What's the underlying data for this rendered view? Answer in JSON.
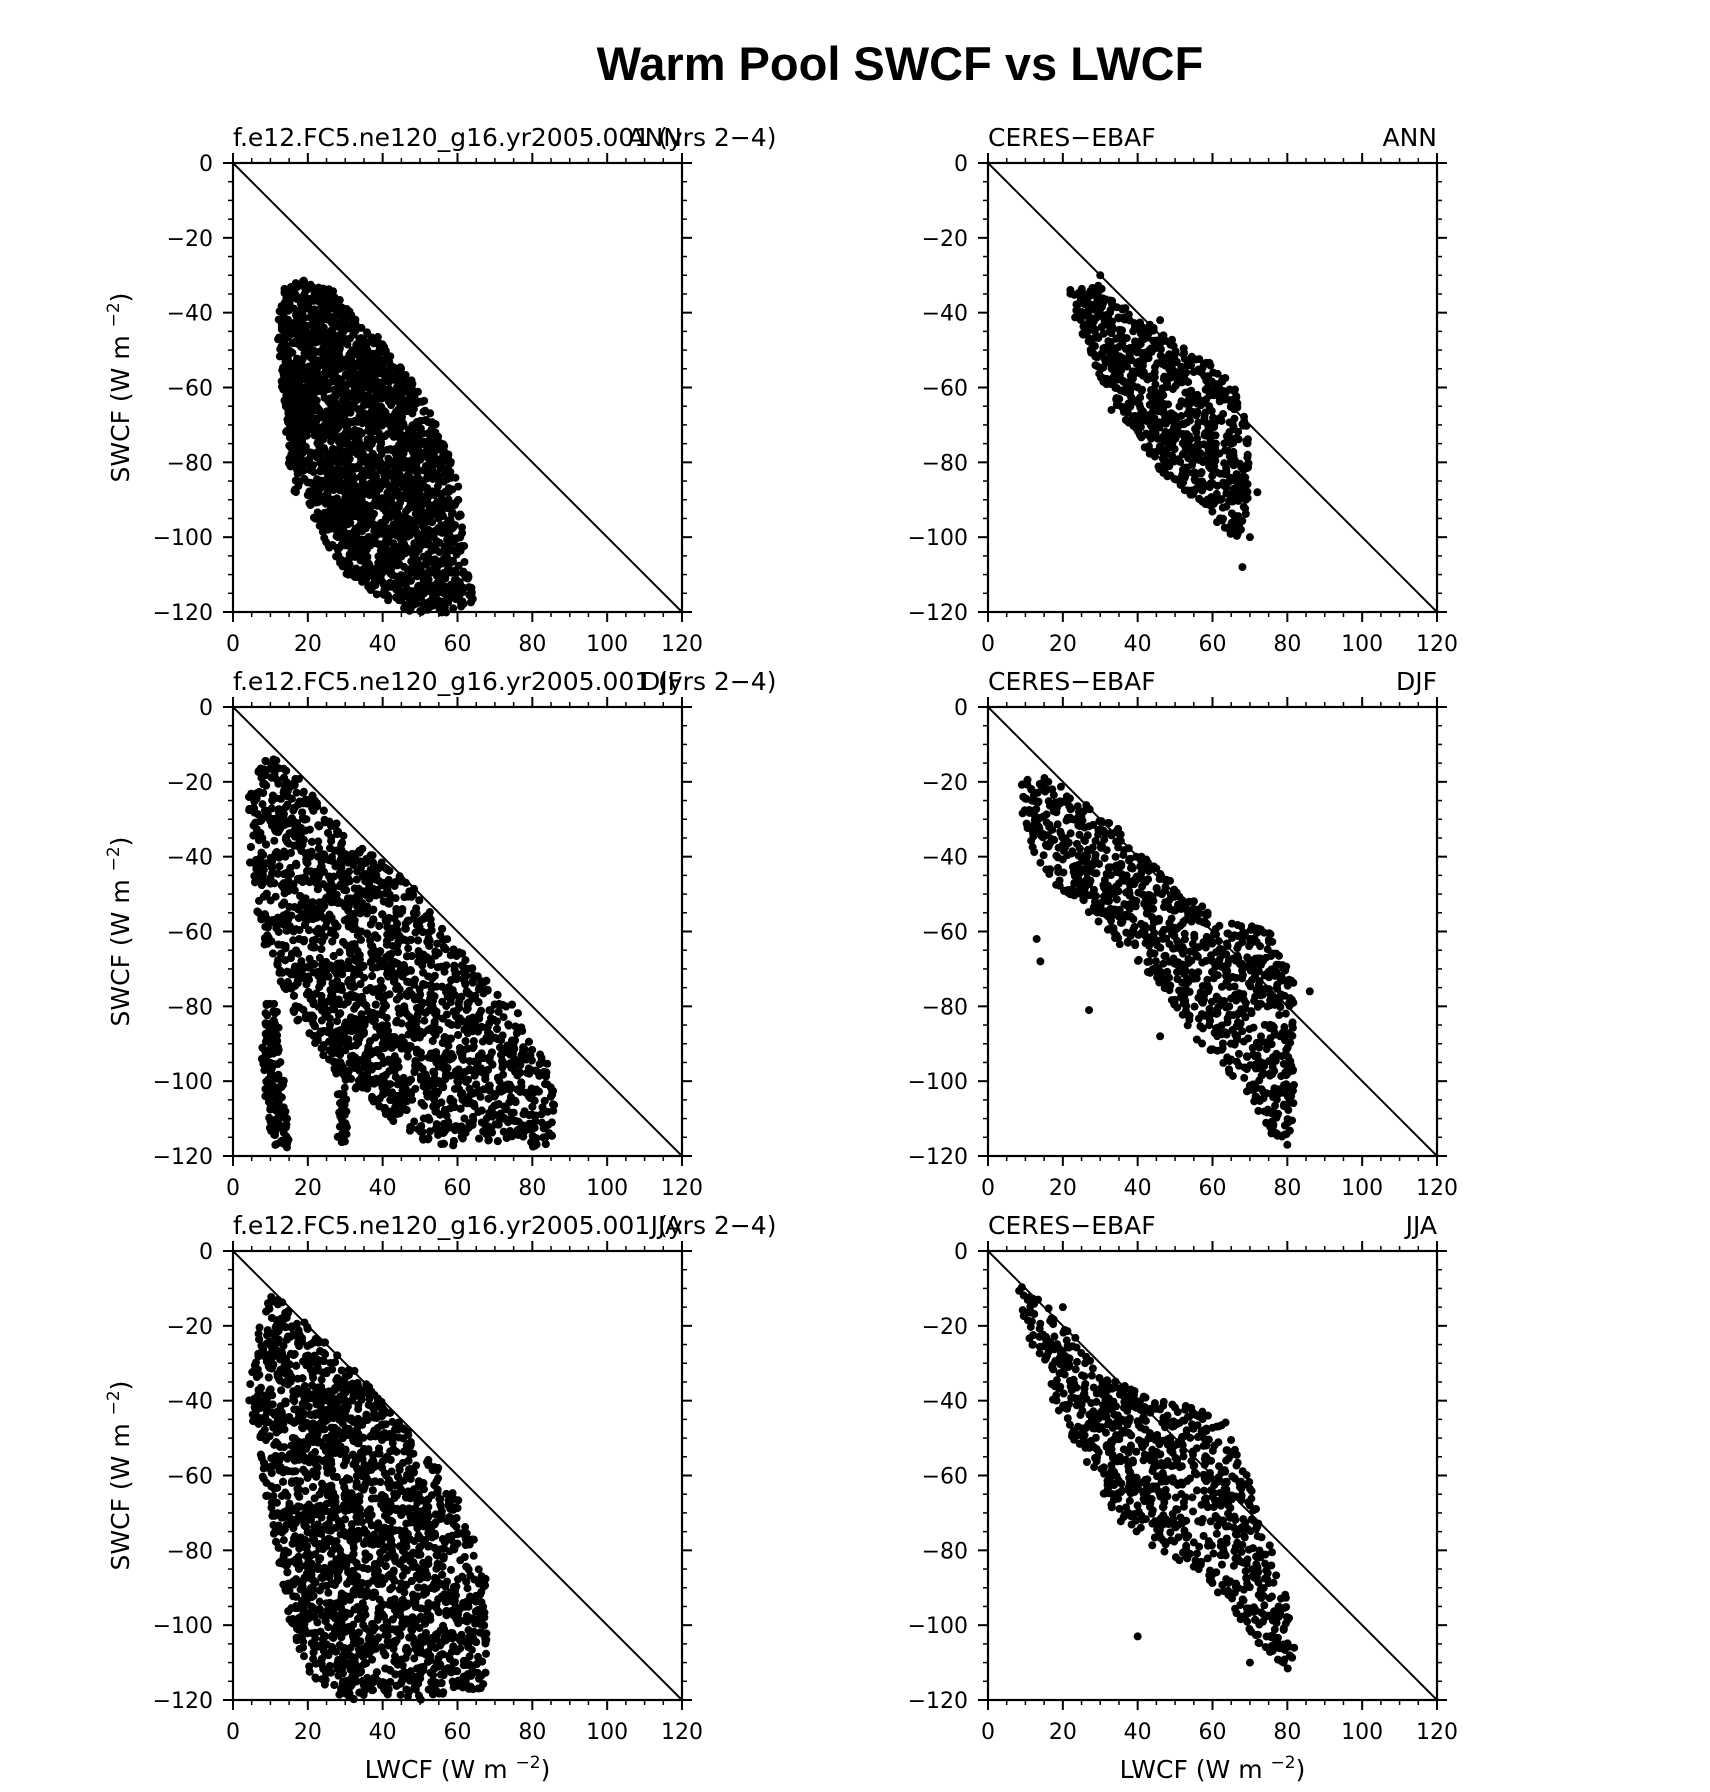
{
  "figure_title": "Warm Pool SWCF vs LWCF",
  "axis_text": {
    "swcf_label": "SWCF (W m",
    "lwcf_label": "LWCF (W m",
    "exponent": "−2",
    "close_paren": ")"
  },
  "chart_data": [
    {
      "type": "scatter",
      "row": 0,
      "col": 0,
      "left_label": "f.e12.FC5.ne120_g16.yr2005.001 (yrs 2−4)",
      "right_label": "ANN",
      "xlabel": "",
      "ylabel": "SWCF (W m−2)",
      "xlim": [
        0,
        120
      ],
      "ylim": [
        -120,
        0
      ],
      "xticks": [
        0,
        20,
        40,
        60,
        80,
        100,
        120
      ],
      "yticks": [
        0,
        -20,
        -40,
        -60,
        -80,
        -100,
        -120
      ],
      "one_to_one_line": [
        [
          0,
          0
        ],
        [
          120,
          -120
        ]
      ],
      "clusters": [
        {
          "polygon": [
            [
              13,
              -33
            ],
            [
              20,
              -31
            ],
            [
              27,
              -34
            ],
            [
              33,
              -42
            ],
            [
              40,
              -48
            ],
            [
              47,
              -57
            ],
            [
              53,
              -66
            ],
            [
              57,
              -76
            ],
            [
              60,
              -84
            ],
            [
              61,
              -95
            ],
            [
              62,
              -108
            ],
            [
              65,
              -117
            ],
            [
              58,
              -120
            ],
            [
              48,
              -120
            ],
            [
              38,
              -115
            ],
            [
              30,
              -110
            ],
            [
              24,
              -100
            ],
            [
              20,
              -90
            ],
            [
              17,
              -78
            ],
            [
              14,
              -64
            ],
            [
              12,
              -48
            ]
          ],
          "n": 2400,
          "scatter": 0.8
        },
        {
          "polygon": [
            [
              14,
              -60
            ],
            [
              18,
              -62
            ],
            [
              19,
              -80
            ],
            [
              17,
              -88
            ],
            [
              15,
              -80
            ]
          ],
          "n": 120,
          "scatter": 1.0
        }
      ]
    },
    {
      "type": "scatter",
      "row": 0,
      "col": 1,
      "left_label": "CERES−EBAF",
      "right_label": "ANN",
      "xlabel": "",
      "ylabel": "",
      "xlim": [
        0,
        120
      ],
      "ylim": [
        -120,
        0
      ],
      "xticks": [
        0,
        20,
        40,
        60,
        80,
        100,
        120
      ],
      "yticks": [
        0,
        -20,
        -40,
        -60,
        -80,
        -100,
        -120
      ],
      "one_to_one_line": [
        [
          0,
          0
        ],
        [
          120,
          -120
        ]
      ],
      "clusters": [
        {
          "polygon": [
            [
              21,
              -33
            ],
            [
              30,
              -33
            ],
            [
              40,
              -40
            ],
            [
              50,
              -48
            ],
            [
              60,
              -54
            ],
            [
              66,
              -60
            ],
            [
              70,
              -68
            ],
            [
              70,
              -85
            ],
            [
              68,
              -100
            ],
            [
              65,
              -100
            ],
            [
              58,
              -92
            ],
            [
              50,
              -86
            ],
            [
              44,
              -80
            ],
            [
              38,
              -70
            ],
            [
              32,
              -62
            ],
            [
              28,
              -55
            ],
            [
              25,
              -45
            ],
            [
              22,
              -38
            ]
          ],
          "n": 850,
          "scatter": 0.6
        },
        {
          "x": [
            68,
            70,
            72,
            30,
            46,
            33
          ],
          "y": [
            -108,
            -100,
            -88,
            -30,
            -42,
            -66
          ]
        }
      ]
    },
    {
      "type": "scatter",
      "row": 1,
      "col": 0,
      "left_label": "f.e12.FC5.ne120_g16.yr2005.001 (yrs 2−4)",
      "right_label": "DJF",
      "xlabel": "",
      "ylabel": "SWCF (W m−2)",
      "xlim": [
        0,
        120
      ],
      "ylim": [
        -120,
        0
      ],
      "xticks": [
        0,
        20,
        40,
        60,
        80,
        100,
        120
      ],
      "yticks": [
        0,
        -20,
        -40,
        -60,
        -80,
        -100,
        -120
      ],
      "one_to_one_line": [
        [
          0,
          0
        ],
        [
          120,
          -120
        ]
      ],
      "clusters": [
        {
          "polygon": [
            [
              4,
              -24
            ],
            [
              7,
              -16
            ],
            [
              10,
              -13
            ],
            [
              17,
              -18
            ],
            [
              25,
              -28
            ],
            [
              32,
              -36
            ],
            [
              38,
              -40
            ],
            [
              46,
              -46
            ],
            [
              55,
              -58
            ],
            [
              65,
              -70
            ],
            [
              75,
              -80
            ],
            [
              83,
              -92
            ],
            [
              86,
              -106
            ],
            [
              86,
              -117
            ],
            [
              78,
              -118
            ],
            [
              66,
              -115
            ],
            [
              55,
              -118
            ],
            [
              45,
              -112
            ],
            [
              35,
              -105
            ],
            [
              25,
              -95
            ],
            [
              15,
              -80
            ],
            [
              8,
              -62
            ],
            [
              5,
              -45
            ]
          ],
          "n": 3000,
          "scatter": 0.8
        },
        {
          "polygon": [
            [
              8,
              -78
            ],
            [
              12,
              -80
            ],
            [
              15,
              -118
            ],
            [
              11,
              -118
            ],
            [
              8,
              -100
            ]
          ],
          "n": 150,
          "scatter": 1.0
        },
        {
          "polygon": [
            [
              26,
              -85
            ],
            [
              30,
              -85
            ],
            [
              31,
              -117
            ],
            [
              28,
              -117
            ]
          ],
          "n": 70,
          "scatter": 0.8
        }
      ]
    },
    {
      "type": "scatter",
      "row": 1,
      "col": 1,
      "left_label": "CERES−EBAF",
      "right_label": "DJF",
      "xlabel": "",
      "ylabel": "",
      "xlim": [
        0,
        120
      ],
      "ylim": [
        -120,
        0
      ],
      "xticks": [
        0,
        20,
        40,
        60,
        80,
        100,
        120
      ],
      "yticks": [
        0,
        -20,
        -40,
        -60,
        -80,
        -100,
        -120
      ],
      "one_to_one_line": [
        [
          0,
          0
        ],
        [
          120,
          -120
        ]
      ],
      "clusters": [
        {
          "polygon": [
            [
              9,
              -20
            ],
            [
              15,
              -18
            ],
            [
              25,
              -25
            ],
            [
              35,
              -33
            ],
            [
              45,
              -43
            ],
            [
              55,
              -52
            ],
            [
              65,
              -57
            ],
            [
              75,
              -60
            ],
            [
              82,
              -72
            ],
            [
              82,
              -90
            ],
            [
              82,
              -105
            ],
            [
              80,
              -117
            ],
            [
              76,
              -115
            ],
            [
              70,
              -105
            ],
            [
              62,
              -95
            ],
            [
              55,
              -88
            ],
            [
              48,
              -78
            ],
            [
              40,
              -68
            ],
            [
              30,
              -58
            ],
            [
              20,
              -50
            ],
            [
              12,
              -40
            ],
            [
              9,
              -28
            ]
          ],
          "n": 1000,
          "scatter": 0.6
        },
        {
          "x": [
            13,
            14,
            27,
            86,
            80,
            46
          ],
          "y": [
            -62,
            -68,
            -81,
            -76,
            -117,
            -88
          ]
        }
      ]
    },
    {
      "type": "scatter",
      "row": 2,
      "col": 0,
      "left_label": "f.e12.FC5.ne120_g16.yr2005.001 (yrs 2−4)",
      "right_label": "JJA",
      "xlabel": "LWCF (W m−2)",
      "ylabel": "SWCF (W m−2)",
      "xlim": [
        0,
        120
      ],
      "ylim": [
        -120,
        0
      ],
      "xticks": [
        0,
        20,
        40,
        60,
        80,
        100,
        120
      ],
      "yticks": [
        0,
        -20,
        -40,
        -60,
        -80,
        -100,
        -120
      ],
      "one_to_one_line": [
        [
          0,
          0
        ],
        [
          120,
          -120
        ]
      ],
      "clusters": [
        {
          "polygon": [
            [
              4,
              -36
            ],
            [
              7,
              -22
            ],
            [
              10,
              -10
            ],
            [
              20,
              -20
            ],
            [
              30,
              -30
            ],
            [
              40,
              -40
            ],
            [
              50,
              -52
            ],
            [
              58,
              -62
            ],
            [
              65,
              -78
            ],
            [
              68,
              -90
            ],
            [
              68,
              -105
            ],
            [
              67,
              -118
            ],
            [
              60,
              -118
            ],
            [
              50,
              -120
            ],
            [
              40,
              -118
            ],
            [
              30,
              -120
            ],
            [
              22,
              -115
            ],
            [
              15,
              -100
            ],
            [
              10,
              -72
            ],
            [
              6,
              -50
            ]
          ],
          "n": 3000,
          "scatter": 0.8
        }
      ]
    },
    {
      "type": "scatter",
      "row": 2,
      "col": 1,
      "left_label": "CERES−EBAF",
      "right_label": "JJA",
      "xlabel": "LWCF (W m−2)",
      "ylabel": "",
      "xlim": [
        0,
        120
      ],
      "ylim": [
        -120,
        0
      ],
      "xticks": [
        0,
        20,
        40,
        60,
        80,
        100,
        120
      ],
      "yticks": [
        0,
        -20,
        -40,
        -60,
        -80,
        -100,
        -120
      ],
      "one_to_one_line": [
        [
          0,
          0
        ],
        [
          120,
          -120
        ]
      ],
      "clusters": [
        {
          "polygon": [
            [
              8,
              -9
            ],
            [
              15,
              -14
            ],
            [
              25,
              -25
            ],
            [
              35,
              -35
            ],
            [
              45,
              -40
            ],
            [
              55,
              -42
            ],
            [
              64,
              -45
            ],
            [
              70,
              -62
            ],
            [
              75,
              -78
            ],
            [
              81,
              -95
            ],
            [
              82,
              -108
            ],
            [
              80,
              -112
            ],
            [
              72,
              -105
            ],
            [
              65,
              -95
            ],
            [
              58,
              -88
            ],
            [
              50,
              -82
            ],
            [
              42,
              -78
            ],
            [
              35,
              -72
            ],
            [
              28,
              -60
            ],
            [
              20,
              -45
            ],
            [
              14,
              -32
            ],
            [
              10,
              -20
            ]
          ],
          "n": 900,
          "scatter": 0.6
        },
        {
          "x": [
            40,
            70,
            79,
            20
          ],
          "y": [
            -103,
            -110,
            -110,
            -15
          ]
        }
      ]
    }
  ]
}
